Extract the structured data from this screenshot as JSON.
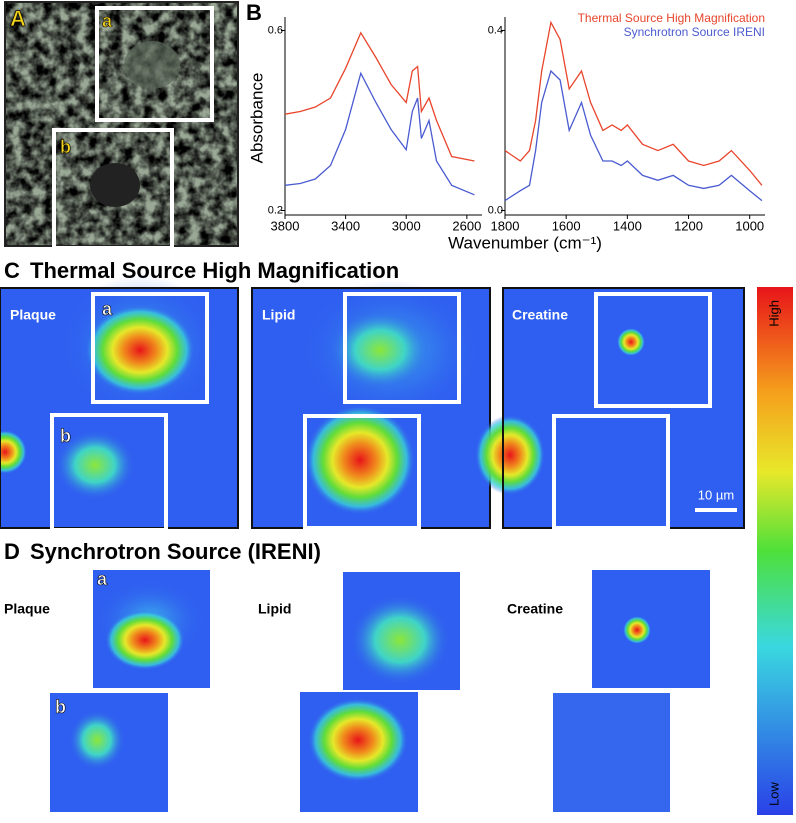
{
  "chart_data": [
    {
      "type": "line",
      "y_label": "Absorbance",
      "x_label": "Wavenumber (cm⁻¹)",
      "x": [
        3800,
        3700,
        3600,
        3500,
        3400,
        3300,
        3200,
        3100,
        3000,
        2960,
        2925,
        2900,
        2850,
        2800,
        2700,
        2550
      ],
      "series": [
        {
          "name": "Thermal Source High Magnification",
          "color": "#e8452c",
          "values": [
            0.414,
            0.42,
            0.43,
            0.45,
            0.516,
            0.595,
            0.54,
            0.48,
            0.44,
            0.51,
            0.52,
            0.42,
            0.45,
            0.4,
            0.32,
            0.31
          ]
        },
        {
          "name": "Synchrotron Source IRENI",
          "color": "#4a5bd0",
          "values": [
            0.256,
            0.26,
            0.27,
            0.3,
            0.38,
            0.505,
            0.44,
            0.38,
            0.335,
            0.42,
            0.45,
            0.36,
            0.4,
            0.31,
            0.256,
            0.235
          ]
        }
      ],
      "xlim": [
        3800,
        2500
      ],
      "xticks": [
        3800,
        3400,
        3000,
        2600
      ],
      "ylim": [
        0.19,
        0.63
      ],
      "yticks": [
        0.2,
        0.6
      ]
    },
    {
      "type": "line",
      "legend": "upper right",
      "x": [
        1800,
        1750,
        1720,
        1700,
        1680,
        1650,
        1620,
        1590,
        1550,
        1520,
        1480,
        1450,
        1420,
        1400,
        1350,
        1300,
        1250,
        1200,
        1150,
        1100,
        1060,
        1000,
        960
      ],
      "series": [
        {
          "name": "Thermal Source High Magnification",
          "color": "#e8452c",
          "values": [
            0.133,
            0.11,
            0.133,
            0.2,
            0.31,
            0.418,
            0.38,
            0.27,
            0.31,
            0.24,
            0.178,
            0.19,
            0.178,
            0.19,
            0.147,
            0.133,
            0.147,
            0.11,
            0.1,
            0.11,
            0.133,
            0.089,
            0.056
          ]
        },
        {
          "name": "Synchrotron Source IRENI",
          "color": "#4a5bd0",
          "values": [
            0.022,
            0.044,
            0.056,
            0.133,
            0.24,
            0.31,
            0.29,
            0.178,
            0.24,
            0.167,
            0.11,
            0.11,
            0.1,
            0.11,
            0.078,
            0.067,
            0.078,
            0.056,
            0.049,
            0.056,
            0.078,
            0.044,
            0.022
          ]
        }
      ],
      "xlim": [
        1800,
        950
      ],
      "xticks": [
        1800,
        1600,
        1400,
        1200,
        1000
      ],
      "ylim": [
        -0.01,
        0.43
      ],
      "yticks": [
        {
          "value": 0,
          "label": "0.0"
        },
        0.4
      ]
    }
  ],
  "figure": {
    "panel_labels": [
      "A",
      "B",
      "C",
      "D"
    ],
    "inset_labels": [
      "a",
      "b"
    ],
    "section_c_title": "Thermal Source High Magnification",
    "section_d_title": "Synchrotron Source (IRENI)",
    "map_labels": [
      "Plaque",
      "Lipid",
      "Creatine"
    ],
    "scale_bar": "10 µm",
    "colorbar": {
      "high": "High",
      "low": "Low"
    }
  }
}
